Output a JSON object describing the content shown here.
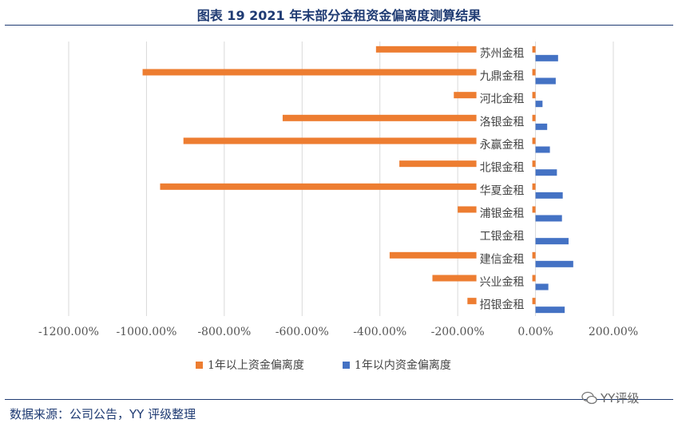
{
  "title": "图表 19 2021 年末部分金租资金偏离度测算结果",
  "source": "数据来源：公司公告，YY 评级整理",
  "watermark": "YY评级",
  "chart_data": {
    "type": "bar",
    "orientation": "horizontal",
    "categories": [
      "苏州金租",
      "九鼎金租",
      "河北金租",
      "洛银金租",
      "永赢金租",
      "北银金租",
      "华夏金租",
      "浦银金租",
      "工银金租",
      "建信金租",
      "兴业金租",
      "招银金租"
    ],
    "series": [
      {
        "name": "1年以上资金偏离度",
        "color": "#ed7d31",
        "values": [
          -410,
          -1010,
          -210,
          -650,
          -905,
          -350,
          -965,
          -200,
          0,
          -375,
          -265,
          -175
        ]
      },
      {
        "name": "1年以内资金偏离度",
        "color": "#4472c4",
        "values": [
          58,
          52,
          18,
          30,
          37,
          55,
          70,
          68,
          85,
          97,
          33,
          75
        ]
      }
    ],
    "xlim": [
      -1200,
      200
    ],
    "xticks": [
      -1200,
      -1000,
      -800,
      -600,
      -400,
      -200,
      0,
      200
    ],
    "xtick_labels": [
      "-1200.00%",
      "-1000.00%",
      "-800.00%",
      "-600.00%",
      "-400.00%",
      "-200.00%",
      "0.00%",
      "200.00%"
    ],
    "grid": true,
    "legend_position": "bottom"
  }
}
